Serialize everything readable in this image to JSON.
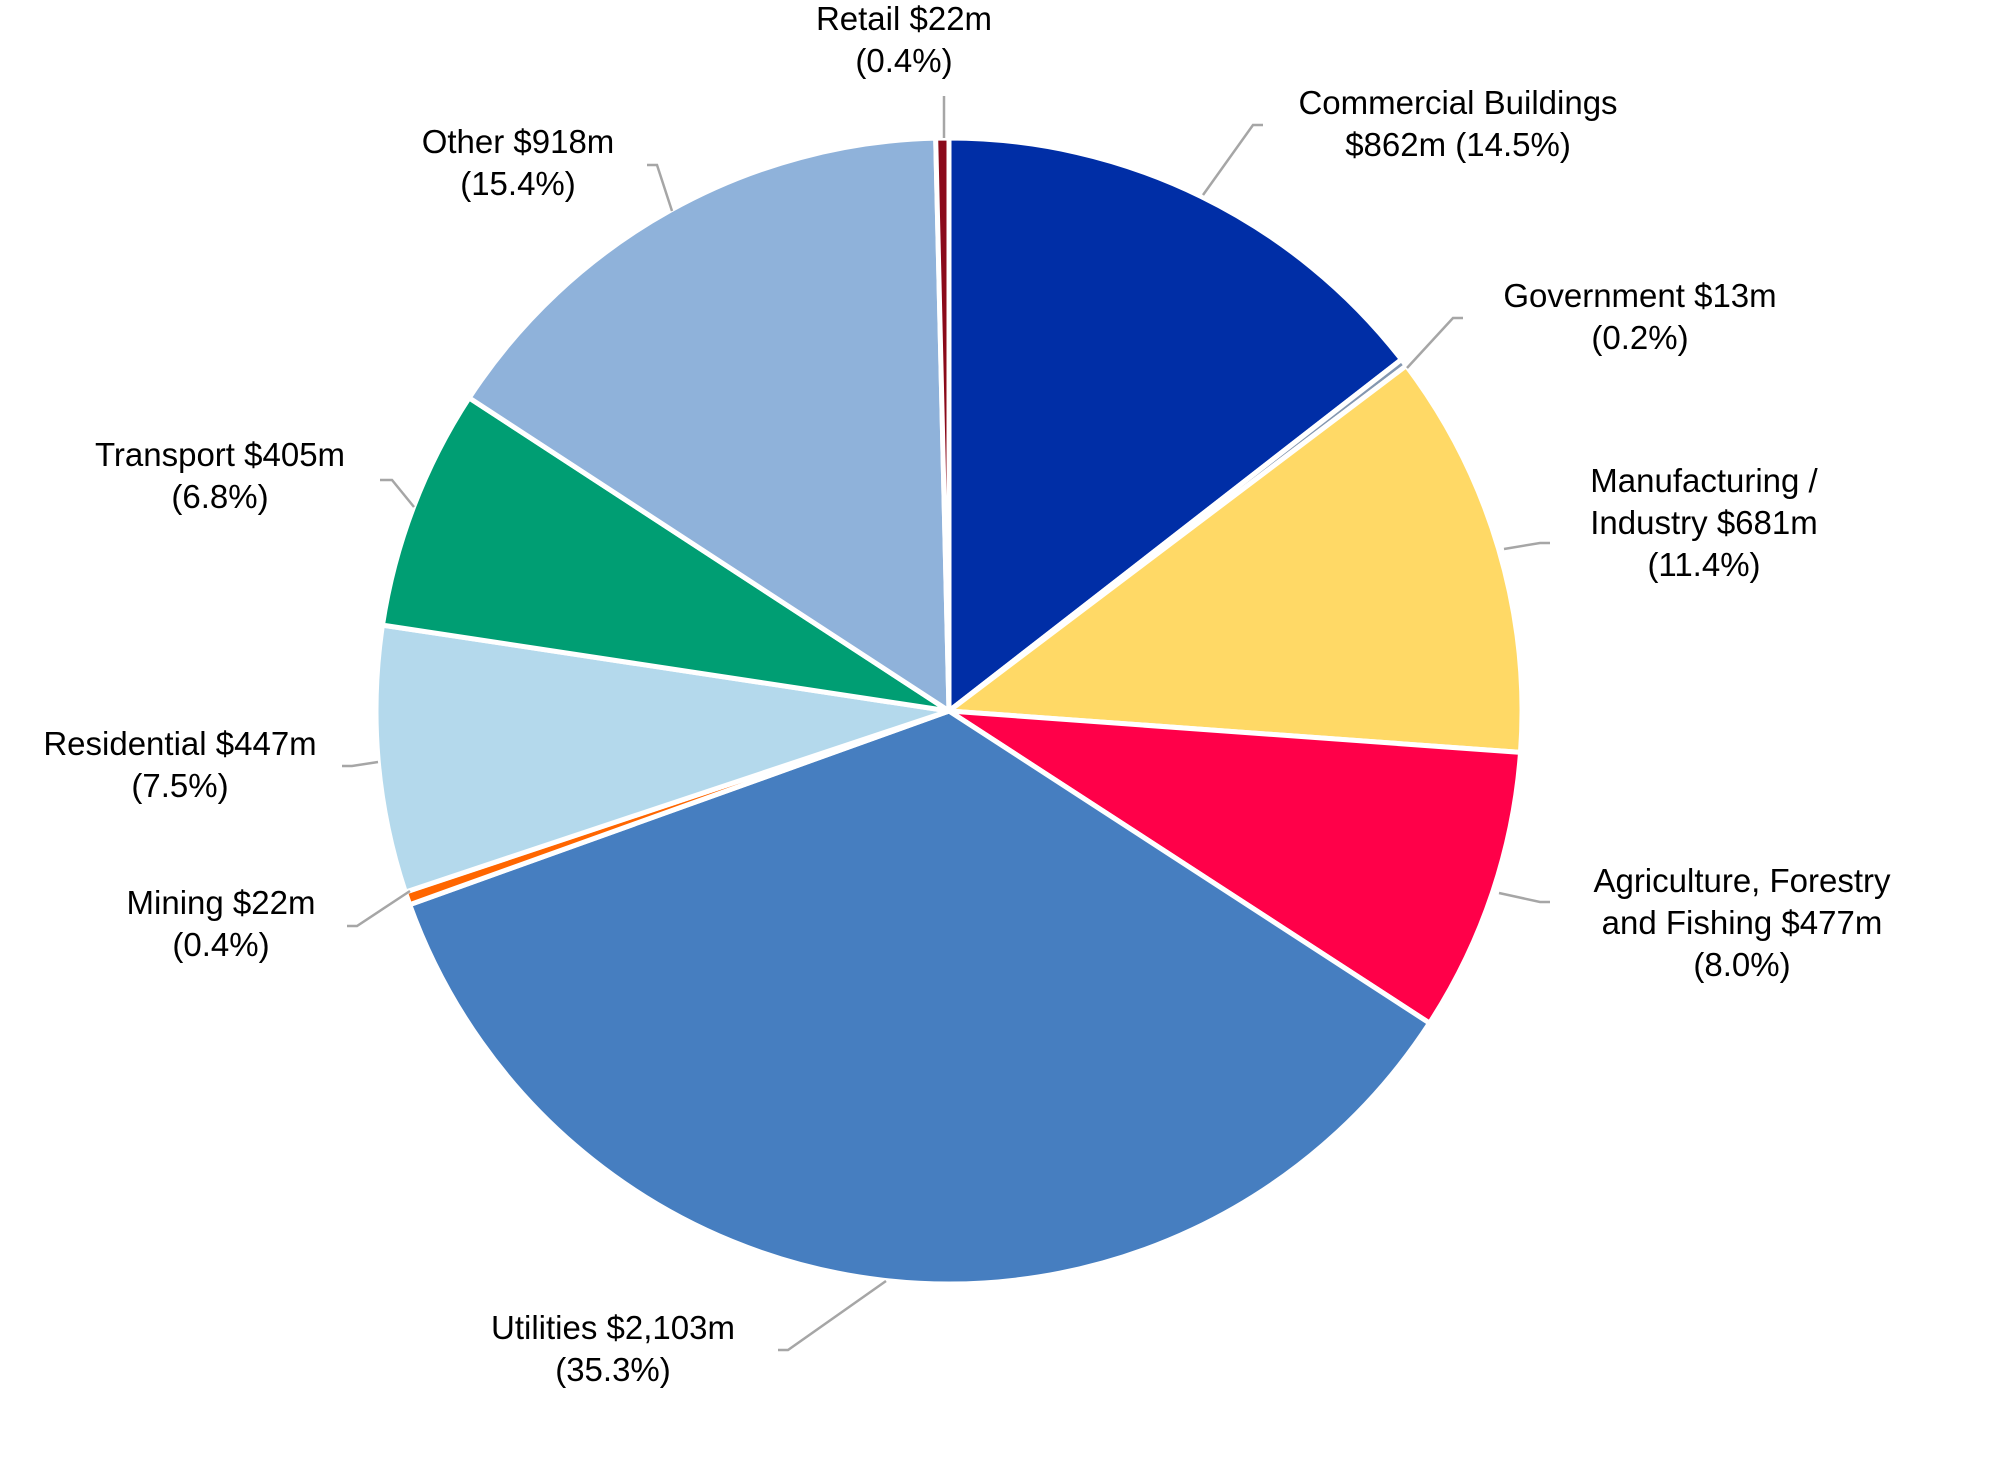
{
  "chart_data": {
    "type": "pie",
    "title": "",
    "slices": [
      {
        "category": "Commercial Buildings",
        "value_label": "$862m",
        "value": 862,
        "percent_label": "(14.5%)",
        "percent": 14.5,
        "color": "#002ea6"
      },
      {
        "category": "Government",
        "value_label": "$13m",
        "value": 13,
        "percent_label": "(0.2%)",
        "percent": 0.2,
        "color": "#8497b0"
      },
      {
        "category": "Manufacturing / Industry",
        "value_label": "$681m",
        "value": 681,
        "percent_label": "(11.4%)",
        "percent": 11.4,
        "color": "#ffd966"
      },
      {
        "category": "Agriculture, Forestry and Fishing",
        "value_label": "$477m",
        "value": 477,
        "percent_label": "(8.0%)",
        "percent": 8.0,
        "color": "#ff0049"
      },
      {
        "category": "Utilities",
        "value_label": "$2,103m",
        "value": 2103,
        "percent_label": "(35.3%)",
        "percent": 35.3,
        "color": "#467ec0"
      },
      {
        "category": "Mining",
        "value_label": "$22m",
        "value": 22,
        "percent_label": "(0.4%)",
        "percent": 0.4,
        "color": "#ff6600"
      },
      {
        "category": "Residential",
        "value_label": "$447m",
        "value": 447,
        "percent_label": "(7.5%)",
        "percent": 7.5,
        "color": "#b4d9ec"
      },
      {
        "category": "Transport",
        "value_label": "$405m",
        "value": 405,
        "percent_label": "(6.8%)",
        "percent": 6.8,
        "color": "#009e73"
      },
      {
        "category": "Other",
        "value_label": "$918m",
        "value": 918,
        "percent_label": "(15.4%)",
        "percent": 15.4,
        "color": "#8fb2da"
      },
      {
        "category": "Retail",
        "value_label": "$22m",
        "value": 22,
        "percent_label": "(0.4%)",
        "percent": 0.4,
        "color": "#8b0a1a"
      }
    ],
    "labels": [
      {
        "lines": [
          "Commercial Buildings",
          "$862m (14.5%)"
        ]
      },
      {
        "lines": [
          "Government $13m",
          "(0.2%)"
        ]
      },
      {
        "lines": [
          "Manufacturing /",
          "Industry $681m",
          "(11.4%)"
        ]
      },
      {
        "lines": [
          "Agriculture, Forestry",
          "and Fishing $477m",
          "(8.0%)"
        ]
      },
      {
        "lines": [
          "Utilities $2,103m",
          "(35.3%)"
        ]
      },
      {
        "lines": [
          "Mining $22m",
          "(0.4%)"
        ]
      },
      {
        "lines": [
          "Residential $447m",
          "(7.5%)"
        ]
      },
      {
        "lines": [
          "Transport $405m",
          "(6.8%)"
        ]
      },
      {
        "lines": [
          "Other $918m",
          "(15.4%)"
        ]
      },
      {
        "lines": [
          "Retail $22m",
          "(0.4%)"
        ]
      }
    ],
    "start_angle_deg": 0,
    "direction": "clockwise",
    "legend": "none",
    "leader_line_color": "#a6a6a6"
  }
}
